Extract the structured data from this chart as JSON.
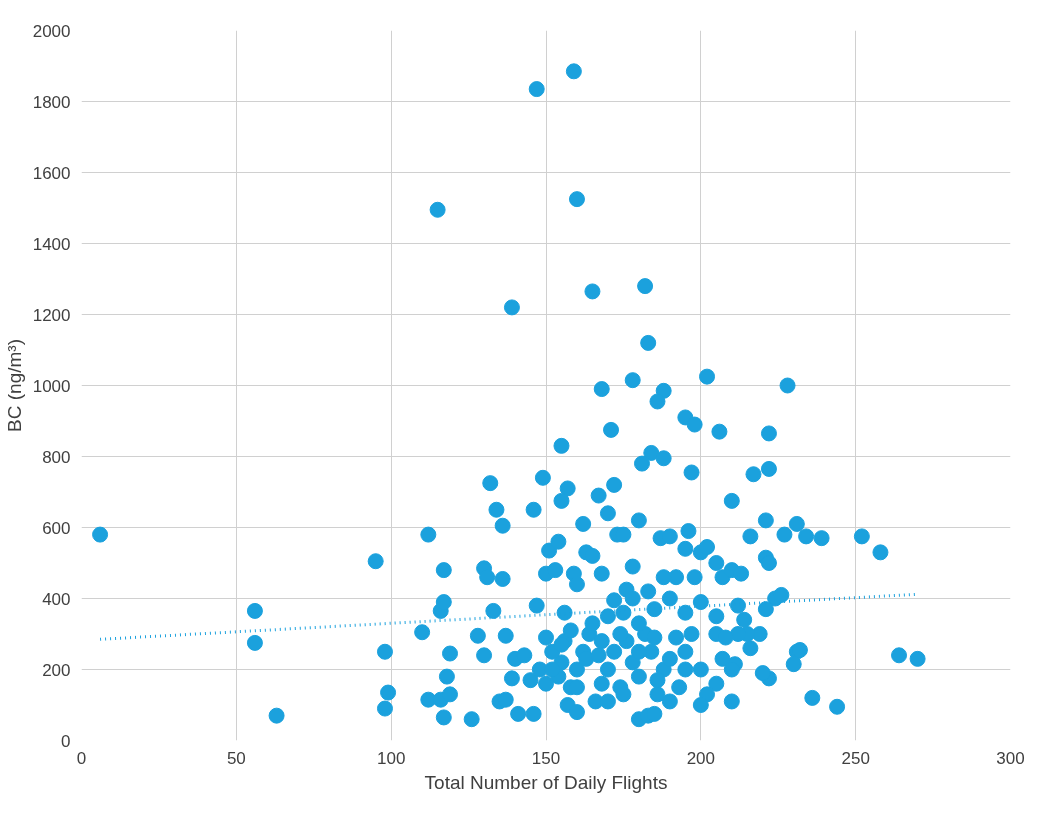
{
  "chart_data": {
    "type": "scatter",
    "xlabel": "Total Number of Daily Flights",
    "ylabel": "BC (ng/m³)",
    "xlim": [
      0,
      300
    ],
    "xticks": [
      0,
      50,
      100,
      150,
      200,
      250,
      300
    ],
    "ylim": [
      0,
      2000
    ],
    "yticks": [
      0,
      200,
      400,
      600,
      800,
      1000,
      1200,
      1400,
      1600,
      1800,
      2000
    ],
    "grid": true,
    "series": [
      {
        "color": "#1ba1dd",
        "marker": "circle",
        "x": [
          147,
          159,
          115,
          160,
          139,
          165,
          182,
          183,
          178,
          168,
          188,
          202,
          228,
          186,
          195,
          198,
          206,
          222,
          171,
          155,
          184,
          188,
          181,
          197,
          217,
          222,
          149,
          132,
          157,
          172,
          167,
          134,
          136,
          146,
          210,
          6,
          112,
          95,
          117,
          130,
          56,
          56,
          63,
          98,
          99,
          98,
          110,
          112,
          116,
          117,
          116,
          117,
          118,
          119,
          119,
          126,
          128,
          130,
          131,
          133,
          136,
          137,
          135,
          137,
          139,
          140,
          141,
          143,
          146,
          145,
          147,
          150,
          151,
          153,
          154,
          155,
          159,
          156,
          160,
          162,
          163,
          165,
          168,
          170,
          173,
          175,
          180,
          178,
          172,
          176,
          174,
          180,
          183,
          185,
          187,
          190,
          192,
          195,
          196,
          200,
          202,
          205,
          207,
          210,
          213,
          216,
          221,
          221,
          222,
          224,
          226,
          227,
          231,
          234,
          239,
          252,
          258,
          231,
          230,
          222,
          220,
          221,
          219,
          215,
          214,
          216,
          212,
          211,
          210,
          232,
          236,
          244,
          264,
          270,
          207,
          205,
          202,
          200,
          195,
          193,
          190,
          188,
          186,
          184,
          182,
          180,
          178,
          176,
          174,
          172,
          170,
          168,
          166,
          164,
          162,
          160,
          158,
          157,
          156,
          155,
          154,
          152,
          150,
          148,
          160,
          165,
          170,
          185,
          190,
          195,
          200,
          192,
          185,
          180,
          175,
          170,
          195,
          205,
          210,
          205,
          198,
          188,
          183,
          178,
          168,
          163,
          158,
          152,
          175,
          200,
          197,
          190,
          186,
          180,
          167,
          160,
          155,
          150,
          212,
          208
        ],
        "values": [
          1835,
          1885,
          1495,
          1525,
          1220,
          1265,
          1280,
          1120,
          1015,
          990,
          985,
          1025,
          1000,
          955,
          910,
          890,
          870,
          865,
          875,
          830,
          810,
          795,
          780,
          755,
          750,
          765,
          740,
          725,
          710,
          720,
          690,
          650,
          605,
          650,
          675,
          580,
          580,
          505,
          480,
          485,
          365,
          275,
          70,
          250,
          135,
          90,
          305,
          115,
          365,
          390,
          115,
          65,
          180,
          245,
          130,
          60,
          295,
          240,
          460,
          365,
          455,
          295,
          110,
          115,
          175,
          230,
          75,
          240,
          75,
          170,
          380,
          470,
          535,
          480,
          560,
          675,
          470,
          360,
          440,
          610,
          530,
          520,
          470,
          640,
          580,
          580,
          620,
          490,
          395,
          425,
          150,
          60,
          70,
          75,
          570,
          575,
          460,
          540,
          590,
          530,
          545,
          500,
          460,
          480,
          470,
          575,
          620,
          515,
          500,
          400,
          410,
          580,
          610,
          575,
          570,
          575,
          530,
          250,
          215,
          175,
          190,
          370,
          300,
          300,
          340,
          260,
          380,
          215,
          110,
          255,
          120,
          95,
          240,
          230,
          230,
          160,
          130,
          100,
          200,
          150,
          110,
          200,
          130,
          250,
          300,
          330,
          220,
          280,
          300,
          250,
          200,
          160,
          110,
          300,
          250,
          200,
          150,
          100,
          280,
          220,
          180,
          250,
          290,
          200,
          80,
          330,
          350,
          370,
          400,
          360,
          390,
          290,
          290,
          180,
          130,
          110,
          250,
          300,
          200,
          350,
          460,
          460,
          420,
          400,
          280,
          230,
          310,
          200,
          360,
          200,
          300,
          230,
          170,
          250,
          240,
          150,
          270,
          160,
          300,
          290
        ]
      },
      {
        "type": "line",
        "color": "#1ba1dd",
        "line_style": "dotted",
        "marker": "none",
        "x": [
          6,
          270
        ],
        "values": [
          285,
          412
        ]
      }
    ]
  }
}
